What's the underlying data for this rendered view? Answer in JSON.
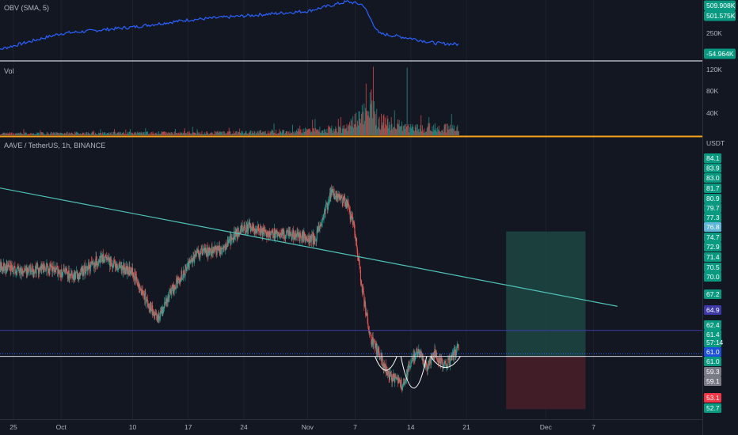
{
  "panes": {
    "obv_label": "OBV (SMA, 5)",
    "vol_label": "Vol",
    "price_label": "AAVE / TetherUS, 1h, BINANCE",
    "currency": "USDT"
  },
  "obv_axis": {
    "ticks": [
      "250K"
    ],
    "tags": [
      {
        "text": "509.908K",
        "color": "#089981"
      },
      {
        "text": "501.575K",
        "color": "#089981"
      },
      {
        "text": "-54.964K",
        "color": "#089981"
      }
    ]
  },
  "vol_axis": {
    "ticks": [
      "120K",
      "80K",
      "40K"
    ]
  },
  "price_axis": {
    "ticks": [
      {
        "text": "84.1",
        "color": "#089981"
      },
      {
        "text": "83.9",
        "color": "#089981"
      },
      {
        "text": "83.0",
        "color": "#089981"
      },
      {
        "text": "81.7",
        "color": "#089981"
      },
      {
        "text": "80.9",
        "color": "#089981"
      },
      {
        "text": "79.7",
        "color": "#089981"
      },
      {
        "text": "77.3",
        "color": "#089981"
      },
      {
        "text": "76.8",
        "color": "#5fb6d9"
      },
      {
        "text": "74.7",
        "color": "#089981"
      },
      {
        "text": "72.9",
        "color": "#089981"
      },
      {
        "text": "71.4",
        "color": "#089981"
      },
      {
        "text": "70.5",
        "color": "#089981"
      },
      {
        "text": "70.0",
        "color": "#089981"
      },
      {
        "text": "67.2",
        "color": "#089981"
      },
      {
        "text": "64.9",
        "color": "#3d3aa8"
      },
      {
        "text": "62.4",
        "color": "#089981"
      },
      {
        "text": "61.4",
        "color": "#089981"
      },
      {
        "text": "57:14",
        "color": "#089981"
      },
      {
        "text": "61.0",
        "color": "#1e4fd8"
      },
      {
        "text": "61.0",
        "color": "#089981"
      },
      {
        "text": "59.3",
        "color": "#787b86"
      },
      {
        "text": "59.1",
        "color": "#787b86"
      },
      {
        "text": "53.1",
        "color": "#f23645"
      },
      {
        "text": "52.7",
        "color": "#089981"
      }
    ]
  },
  "time_axis": [
    "25",
    "Oct",
    "10",
    "17",
    "24",
    "Nov",
    "7",
    "14",
    "21",
    "Dec",
    "7"
  ],
  "colors": {
    "up": "#26a69a",
    "down": "#ef5350",
    "obv_line": "#2962ff",
    "trendline": "#4fc3b8",
    "target_zone": "#1e4e47",
    "stop_zone": "#4a1f28",
    "orange_line": "#f7a21b"
  },
  "chart_data": [
    {
      "type": "line",
      "title": "OBV (SMA, 5)",
      "x": [
        "2022-09-22",
        "2022-10-01",
        "2022-10-10",
        "2022-10-17",
        "2022-10-24",
        "2022-11-01",
        "2022-11-06",
        "2022-11-08",
        "2022-11-09",
        "2022-11-10",
        "2022-11-14",
        "2022-11-17",
        "2022-11-20"
      ],
      "series": [
        {
          "values": [
            -150,
            80,
            160,
            250,
            300,
            360,
            480,
            440,
            250,
            80,
            20,
            -40,
            -55
          ]
        }
      ]
    },
    {
      "type": "bar",
      "title": "Vol",
      "x": [
        "2022-09-22",
        "2022-10-10",
        "2022-10-24",
        "2022-11-01",
        "2022-11-06",
        "2022-11-09",
        "2022-11-10",
        "2022-11-14",
        "2022-11-20"
      ],
      "series": [
        {
          "values": [
            8,
            10,
            12,
            20,
            30,
            120,
            60,
            30,
            35
          ]
        }
      ],
      "ylim": [
        0,
        130
      ]
    },
    {
      "type": "line",
      "title": "AAVE / TetherUS, 1h, BINANCE",
      "ylabel": "USDT",
      "x": [
        "2022-09-22",
        "2022-09-26",
        "2022-09-29",
        "2022-10-03",
        "2022-10-06",
        "2022-10-10",
        "2022-10-13",
        "2022-10-15",
        "2022-10-18",
        "2022-10-21",
        "2022-10-24",
        "2022-10-27",
        "2022-10-31",
        "2022-11-02",
        "2022-11-04",
        "2022-11-06",
        "2022-11-07",
        "2022-11-08",
        "2022-11-09",
        "2022-11-10",
        "2022-11-11",
        "2022-11-13",
        "2022-11-14",
        "2022-11-15",
        "2022-11-16",
        "2022-11-17",
        "2022-11-18",
        "2022-11-19",
        "2022-11-20"
      ],
      "series": [
        {
          "values": [
            74.5,
            73.8,
            74.2,
            73.0,
            75.8,
            73.5,
            66.5,
            71.0,
            76.5,
            76.8,
            80.5,
            79.5,
            79.0,
            78.5,
            85.5,
            84.0,
            79.5,
            70.0,
            63.5,
            61.5,
            58.5,
            56.5,
            60.5,
            61.8,
            59.5,
            61.5,
            59.8,
            60.3,
            62.4
          ]
        }
      ],
      "annotations": {
        "trendline": {
          "from": [
            "2022-09-22",
            86.5
          ],
          "to": [
            "2022-12-10",
            68.5
          ]
        },
        "horizontal_lines": [
          61.0,
          64.9,
          61.4
        ],
        "long_position": {
          "entry": 61.0,
          "target": 79.7,
          "stop": 53.1,
          "from": "2022-11-26",
          "to": "2022-12-06"
        }
      }
    }
  ]
}
